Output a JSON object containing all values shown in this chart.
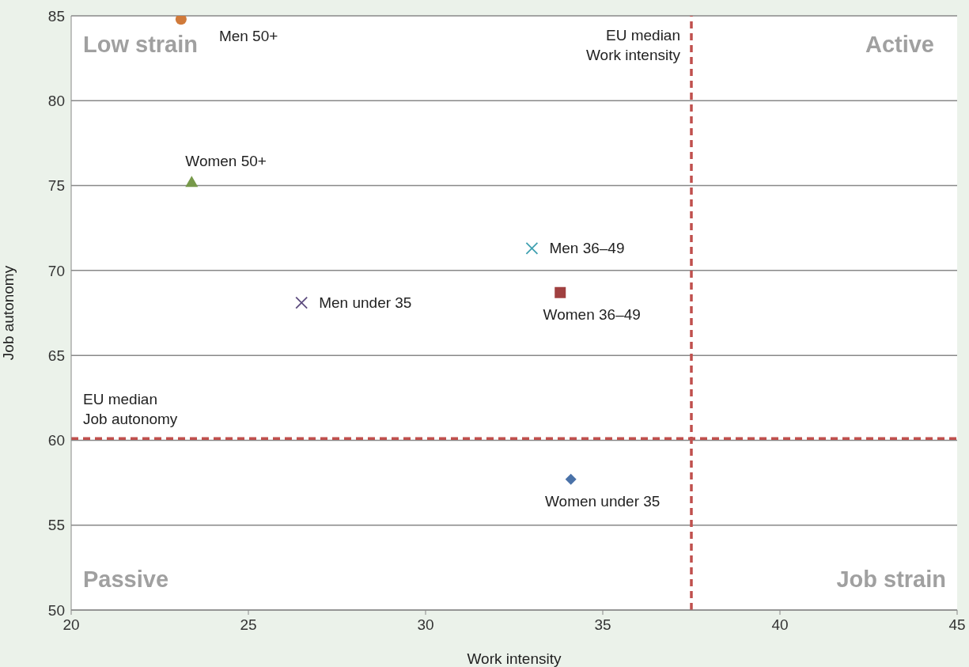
{
  "chart_data": {
    "type": "scatter",
    "xlabel": "Work intensity",
    "ylabel": "Job autonomy",
    "xlim": [
      20,
      45
    ],
    "xticks": [
      20,
      25,
      30,
      35,
      40,
      45
    ],
    "ylim": [
      50,
      85
    ],
    "yticks": [
      50,
      55,
      60,
      65,
      70,
      75,
      80,
      85
    ],
    "grid": "y",
    "legend": false,
    "series": [
      {
        "name": "Men 50+",
        "color": "#d07a3a",
        "marker": "circle",
        "x": [
          23.1
        ],
        "values": [
          84.8
        ]
      },
      {
        "name": "Women 50+",
        "color": "#77994a",
        "marker": "triangle",
        "x": [
          23.4
        ],
        "values": [
          75.2
        ]
      },
      {
        "name": "Men under 35",
        "color": "#5e4d7f",
        "marker": "cross",
        "x": [
          26.5
        ],
        "values": [
          68.1
        ]
      },
      {
        "name": "Men 36–49",
        "color": "#3fa0b0",
        "marker": "cross",
        "x": [
          33.0
        ],
        "values": [
          71.3
        ]
      },
      {
        "name": "Women 36–49",
        "color": "#a04040",
        "marker": "square",
        "x": [
          33.8
        ],
        "values": [
          68.7
        ]
      },
      {
        "name": "Women under 35",
        "color": "#4a72a8",
        "marker": "diamond",
        "x": [
          34.1
        ],
        "values": [
          57.7
        ]
      }
    ],
    "ref_lines": [
      {
        "axis": "x",
        "value": 37.5,
        "label": "EU median\nWork intensity",
        "color": "#c0504d",
        "line_style": "dashed"
      },
      {
        "axis": "y",
        "value": 60.1,
        "label": "EU median\nJob autonomy",
        "color": "#c0504d",
        "line_style": "dashed"
      }
    ],
    "annotations": [
      "Low strain",
      "Active",
      "Passive",
      "Job strain"
    ]
  }
}
